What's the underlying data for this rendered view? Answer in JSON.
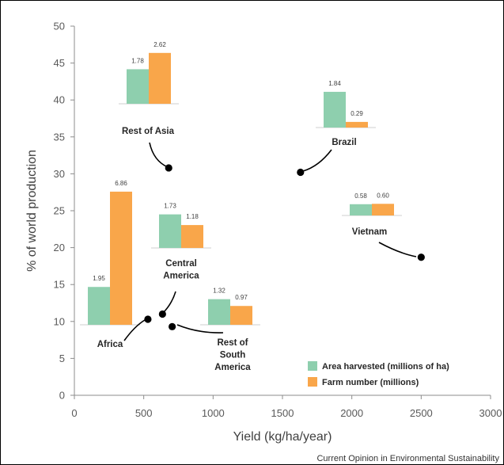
{
  "chart_data": {
    "type": "scatter",
    "xlabel": "Yield (kg/ha/year)",
    "ylabel": "% of world production",
    "xlim": [
      0,
      3000
    ],
    "ylim": [
      0,
      50
    ],
    "x_ticks": [
      "0",
      "500",
      "1000",
      "1500",
      "2000",
      "2500",
      "3000"
    ],
    "y_ticks": [
      "0",
      "5",
      "10",
      "15",
      "20",
      "25",
      "30",
      "35",
      "40",
      "45",
      "50"
    ],
    "grid": false,
    "legend_position": "bottom-right",
    "bar_series": [
      {
        "name": "Area harvested (millions of ha)",
        "color": "#8ECFAE"
      },
      {
        "name": "Farm number (millions)",
        "color": "#F9A64A"
      }
    ],
    "regions": [
      {
        "name": "Rest of Asia",
        "x": 680,
        "y": 30.8,
        "area_harvested": 1.78,
        "farm_number": 2.62
      },
      {
        "name": "Brazil",
        "x": 1630,
        "y": 30.2,
        "area_harvested": 1.84,
        "farm_number": 0.29
      },
      {
        "name": "Vietnam",
        "x": 2500,
        "y": 18.7,
        "area_harvested": 0.58,
        "farm_number": 0.6
      },
      {
        "name": "Africa",
        "x": 530,
        "y": 10.3,
        "area_harvested": 1.95,
        "farm_number": 6.86
      },
      {
        "name": "Central America",
        "x": 635,
        "y": 11.0,
        "area_harvested": 1.73,
        "farm_number": 1.18
      },
      {
        "name": "Rest of South America",
        "x": 705,
        "y": 9.3,
        "area_harvested": 1.32,
        "farm_number": 0.97
      }
    ]
  },
  "labels": {
    "rest_of_asia": [
      "Rest of Asia"
    ],
    "brazil": [
      "Brazil"
    ],
    "vietnam": [
      "Vietnam"
    ],
    "africa": [
      "Africa"
    ],
    "central_america": [
      "Central",
      "America"
    ],
    "rest_south_america": [
      "Rest of",
      "South",
      "America"
    ]
  },
  "source": "Current Opinion in Environmental Sustainability"
}
